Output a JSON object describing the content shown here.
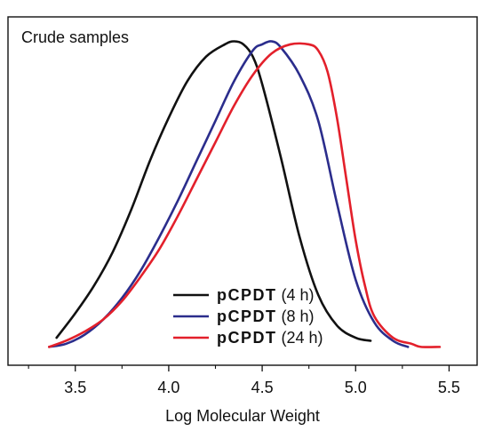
{
  "chart_data": {
    "type": "line",
    "annotation": "Crude samples",
    "xlabel": "Log Molecular Weight",
    "ylabel": "",
    "xlim": [
      3.14,
      5.65
    ],
    "ylim": [
      -0.06,
      1.08
    ],
    "x_ticks": [
      "3.5",
      "4.0",
      "4.5",
      "5.0",
      "5.5"
    ],
    "x_tick_values": [
      3.5,
      4.0,
      4.5,
      5.0,
      5.5
    ],
    "y_ticks_shown": false,
    "legend_position": "bottom-center",
    "series": [
      {
        "name": "pCPDT (4 h)",
        "name_bold": "pCPDT",
        "name_suffix": "(4 h)",
        "color": "#111111",
        "x": [
          3.4,
          3.5,
          3.6,
          3.7,
          3.8,
          3.9,
          4.0,
          4.1,
          4.2,
          4.3,
          4.35,
          4.4,
          4.45,
          4.5,
          4.6,
          4.7,
          4.8,
          4.9,
          5.0,
          5.08
        ],
        "y": [
          0.03,
          0.11,
          0.2,
          0.31,
          0.45,
          0.61,
          0.75,
          0.87,
          0.95,
          0.99,
          1.0,
          0.99,
          0.95,
          0.86,
          0.62,
          0.36,
          0.17,
          0.07,
          0.03,
          0.02
        ]
      },
      {
        "name": "pCPDT (8 h)",
        "name_bold": "pCPDT",
        "name_suffix": "(8 h)",
        "color": "#2b2d8c",
        "x": [
          3.36,
          3.45,
          3.55,
          3.65,
          3.75,
          3.85,
          3.95,
          4.05,
          4.15,
          4.25,
          4.35,
          4.45,
          4.5,
          4.55,
          4.6,
          4.7,
          4.8,
          4.9,
          5.0,
          5.1,
          5.2,
          5.28
        ],
        "y": [
          0.0,
          0.01,
          0.04,
          0.09,
          0.16,
          0.25,
          0.36,
          0.48,
          0.61,
          0.74,
          0.87,
          0.97,
          0.99,
          1.0,
          0.98,
          0.89,
          0.74,
          0.47,
          0.22,
          0.08,
          0.02,
          0.0
        ]
      },
      {
        "name": "pCPDT (24 h)",
        "name_bold": "pCPDT",
        "name_suffix": "(24 h)",
        "color": "#e3202b",
        "x": [
          3.36,
          3.45,
          3.55,
          3.65,
          3.75,
          3.85,
          3.95,
          4.05,
          4.15,
          4.25,
          4.35,
          4.45,
          4.55,
          4.65,
          4.75,
          4.8,
          4.85,
          4.9,
          4.95,
          5.0,
          5.05,
          5.1,
          5.2,
          5.3,
          5.35,
          5.45
        ],
        "y": [
          0.0,
          0.02,
          0.05,
          0.09,
          0.15,
          0.23,
          0.32,
          0.43,
          0.55,
          0.67,
          0.79,
          0.89,
          0.96,
          0.99,
          0.99,
          0.97,
          0.9,
          0.75,
          0.55,
          0.35,
          0.2,
          0.1,
          0.03,
          0.01,
          0.0,
          0.0
        ]
      }
    ]
  }
}
